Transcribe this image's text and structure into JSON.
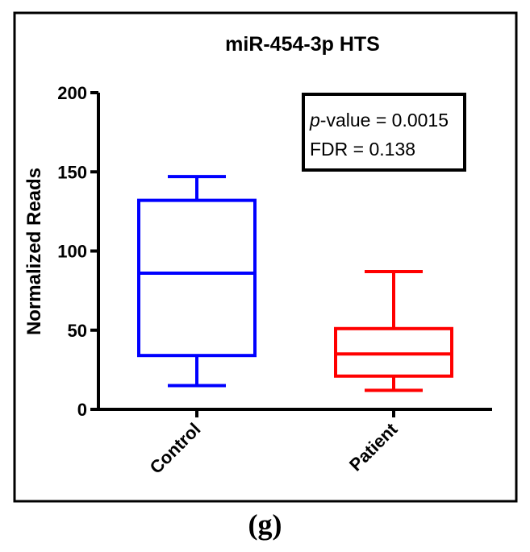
{
  "chart_data": {
    "type": "box",
    "title": "miR-454-3p HTS",
    "ylabel": "Normalized Reads",
    "xlabel": "",
    "ylim": [
      0,
      200
    ],
    "yticks": [
      0,
      50,
      100,
      150,
      200
    ],
    "categories": [
      "Control",
      "Patient"
    ],
    "boxes": [
      {
        "name": "Control",
        "min": 15,
        "q1": 34,
        "median": 86,
        "q3": 132,
        "max": 147,
        "color": "#0000ff"
      },
      {
        "name": "Patient",
        "min": 12,
        "q1": 21,
        "median": 35,
        "q3": 51,
        "max": 87,
        "color": "#ff0000"
      }
    ],
    "annotation": {
      "p_label": "p",
      "p_text": "-value = 0.0015",
      "fdr_text": "FDR = 0.138"
    }
  },
  "caption": "(g)"
}
